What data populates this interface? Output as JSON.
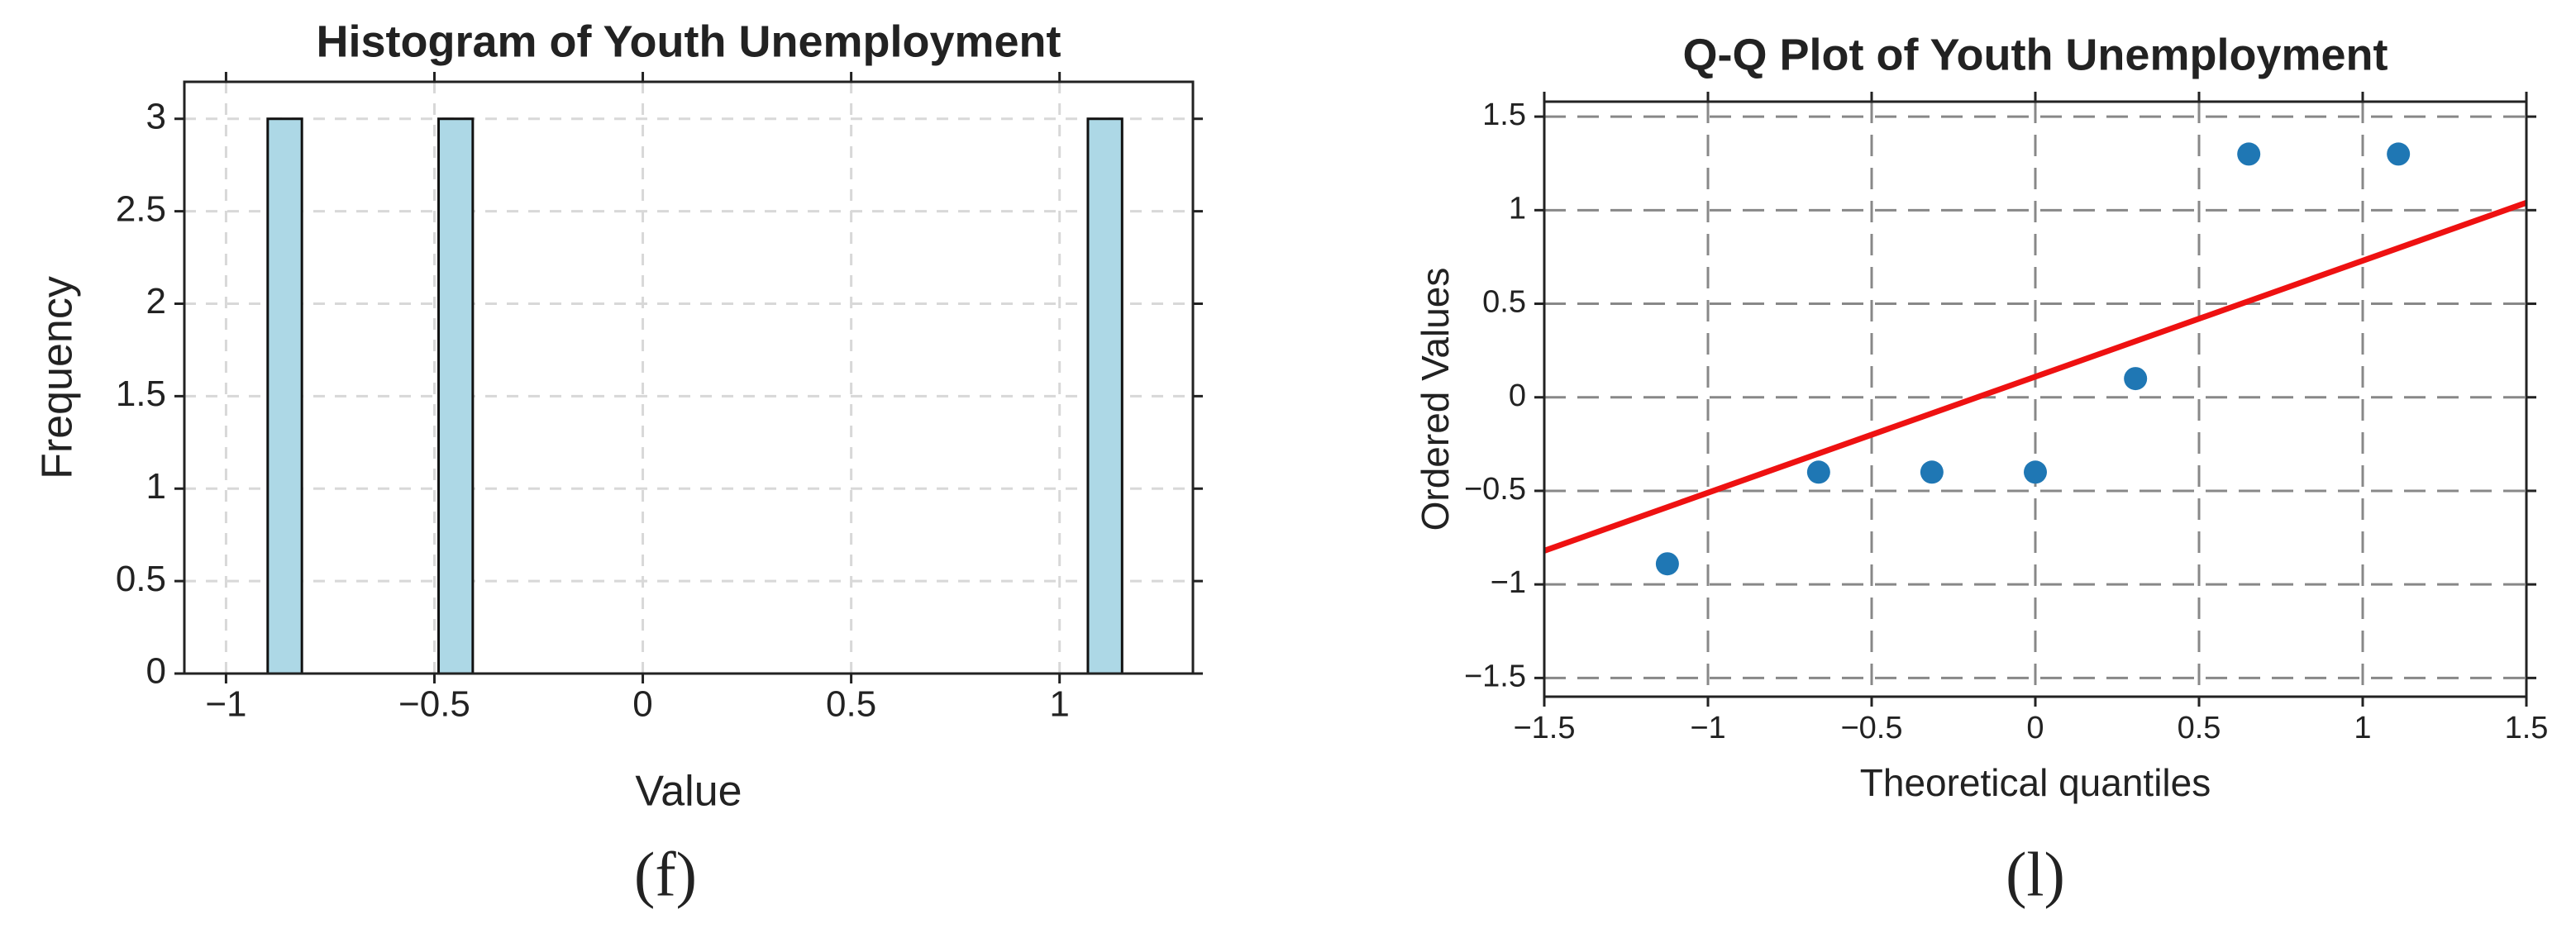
{
  "chart_data": [
    {
      "type": "histogram",
      "title": "Histogram of Youth Unemployment",
      "xlabel": "Value",
      "ylabel": "Frequency",
      "caption": "(f)",
      "bins": [
        -0.9,
        -0.818,
        -0.736,
        -0.654,
        -0.572,
        -0.49,
        -0.408,
        -0.326,
        -0.244,
        -0.162,
        -0.08,
        0.002,
        0.084,
        0.166,
        0.248,
        0.33,
        0.412,
        0.494,
        0.576,
        0.658,
        0.74,
        0.822,
        0.904,
        0.986,
        1.068,
        1.15
      ],
      "values": [
        3,
        0,
        0,
        0,
        0,
        3,
        0,
        0,
        0,
        0,
        0,
        0,
        0,
        0,
        0,
        0,
        0,
        0,
        0,
        0,
        0,
        0,
        0,
        0,
        3
      ],
      "color": "#add8e6",
      "xlim": [
        -1.1,
        1.32
      ],
      "ylim": [
        0,
        3.2
      ],
      "xticks": [
        {
          "value": -1,
          "label": "−1"
        },
        {
          "value": -0.5,
          "label": "−0.5"
        },
        0,
        0.5,
        1
      ],
      "yticks": [
        0,
        0.5,
        1,
        1.5,
        2,
        2.5,
        3
      ],
      "grid": true
    },
    {
      "type": "qq",
      "title": "Q-Q Plot of Youth Unemployment",
      "xlabel": "Theoretical quantiles",
      "ylabel": "Ordered Values",
      "caption": "(l)",
      "points": {
        "x": [
          -1.124,
          -0.662,
          -0.316,
          0,
          0.306,
          0.652,
          1.109
        ],
        "values": [
          -0.89,
          -0.4,
          -0.4,
          -0.4,
          0.1,
          1.3,
          1.3
        ],
        "color": "#1f77b4"
      },
      "line": {
        "x": [
          -1.5,
          1.5
        ],
        "values": [
          -0.82,
          1.04
        ],
        "color": "#ee1111"
      },
      "xlim": [
        -1.5,
        1.5
      ],
      "ylim": [
        -1.6,
        1.58
      ],
      "xticks": [
        {
          "value": -1.5,
          "label": "−1.5"
        },
        {
          "value": -1,
          "label": "−1"
        },
        {
          "value": -0.5,
          "label": "−0.5"
        },
        0,
        0.5,
        1,
        1.5
      ],
      "yticks": [
        {
          "value": -1.5,
          "label": "−1.5"
        },
        {
          "value": -1,
          "label": "−1"
        },
        {
          "value": -0.5,
          "label": "−0.5"
        },
        0,
        0.5,
        1,
        1.5
      ],
      "grid": true
    }
  ]
}
